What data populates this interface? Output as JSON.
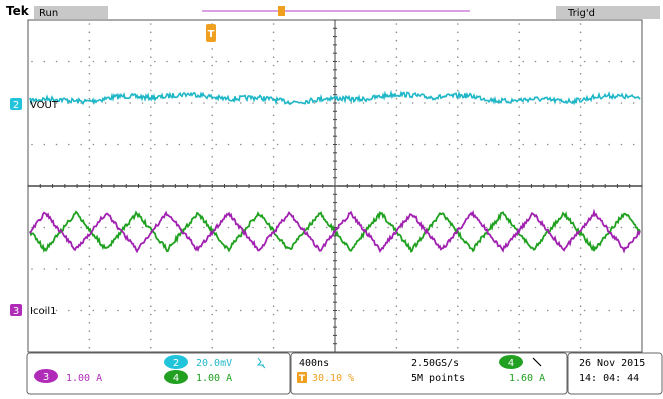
{
  "header": {
    "brand": "Tek",
    "run_state": "Run",
    "trigger_status": "Trig'd",
    "trigger_marker": "T"
  },
  "channels": [
    {
      "id": "2",
      "label": "VOUT",
      "color": "#1fb7c7"
    },
    {
      "id": "3",
      "label": "Icoil1",
      "color": "#a020b0"
    },
    {
      "id": "4",
      "label": "",
      "color": "#1fa01f"
    }
  ],
  "readout": {
    "ch3_badge": "3",
    "ch3_scale": "1.00 A",
    "ch2_badge": "2",
    "ch2_scale": "20.0mV",
    "ch2_bw_icon": "bandwidth-limit-icon",
    "ch4_badge": "4",
    "ch4_scale": "1.00 A",
    "timebase": "400ns",
    "sample_rate": "2.50GS/s",
    "trigger_pos_marker": "T",
    "trigger_pos": "30.10 %",
    "record_length": "5M points",
    "trig_source_badge": "4",
    "trig_slope_icon": "falling-edge-icon",
    "trig_level": "1.60 A",
    "date": "26 Nov 2015",
    "time": "14: 04: 44"
  },
  "colors": {
    "vout": "#1fb7c7",
    "icoil_ch3": "#a020b0",
    "icoil_ch4": "#1fa01f",
    "trigger": "#f0a020",
    "badge_ch2": "#22c4dc",
    "badge_ch3": "#b02cb8",
    "badge_ch4": "#22a022"
  },
  "waveforms": {
    "vout": {
      "shape": "noisy-flat"
    },
    "ch3": {
      "shape": "triangle",
      "cycles": 10
    },
    "ch4": {
      "shape": "triangle",
      "cycles": 10,
      "phase": "inverted"
    }
  }
}
